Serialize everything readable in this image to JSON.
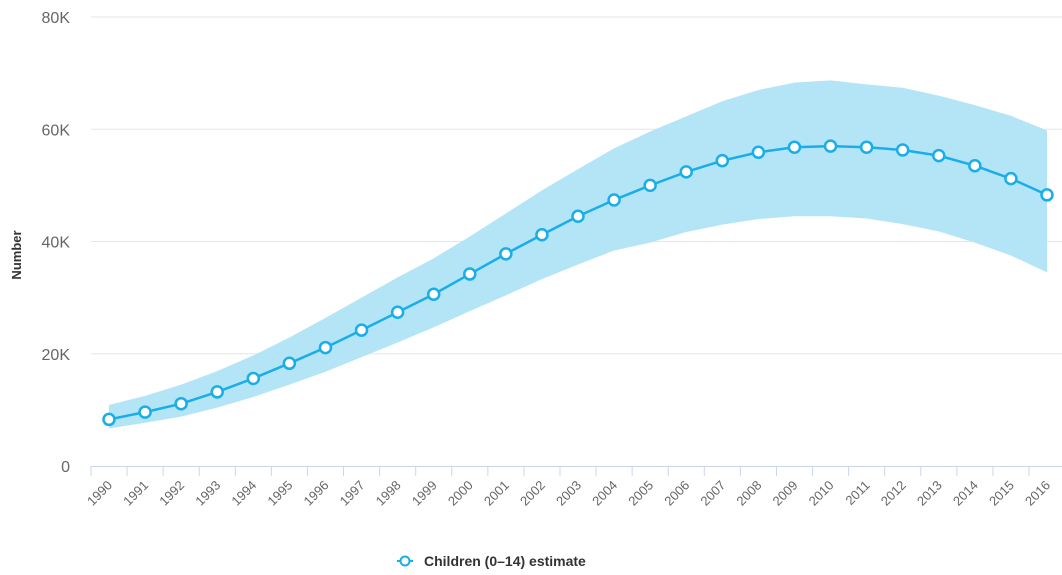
{
  "colors": {
    "series": "#1aaee8",
    "band": "#b3e5f7",
    "grid": "#e6e6e6",
    "axis": "#ccd6eb",
    "marker_fill": "#ffffff"
  },
  "chart_data": {
    "type": "line",
    "ylabel": "Number",
    "ylim": [
      0,
      80000
    ],
    "yticks": [
      {
        "value": 0,
        "label": "0"
      },
      {
        "value": 20000,
        "label": "20K"
      },
      {
        "value": 40000,
        "label": "40K"
      },
      {
        "value": 60000,
        "label": "60K"
      },
      {
        "value": 80000,
        "label": "80K"
      }
    ],
    "grid": true,
    "legend_position": "bottom-center",
    "categories": [
      "1990",
      "1991",
      "1992",
      "1993",
      "1994",
      "1995",
      "1996",
      "1997",
      "1998",
      "1999",
      "2000",
      "2001",
      "2002",
      "2003",
      "2004",
      "2005",
      "2006",
      "2007",
      "2008",
      "2009",
      "2010",
      "2011",
      "2012",
      "2013",
      "2014",
      "2015",
      "2016"
    ],
    "series": [
      {
        "name": "Children (0–14) estimate",
        "values": [
          8300,
          9600,
          11100,
          13200,
          15600,
          18300,
          21100,
          24200,
          27400,
          30600,
          34200,
          37800,
          41200,
          44500,
          47400,
          50000,
          52400,
          54400,
          55900,
          56800,
          57000,
          56800,
          56300,
          55300,
          53500,
          51200,
          48300
        ],
        "lower": [
          6700,
          7700,
          8800,
          10400,
          12300,
          14500,
          16800,
          19400,
          22000,
          24700,
          27600,
          30400,
          33300,
          35900,
          38400,
          39800,
          41700,
          43000,
          44000,
          44500,
          44500,
          44100,
          43100,
          41800,
          39800,
          37500,
          34500
        ],
        "upper": [
          10900,
          12500,
          14500,
          16900,
          19700,
          22900,
          26400,
          30000,
          33600,
          37000,
          40900,
          45000,
          49100,
          52900,
          56600,
          59600,
          62300,
          65000,
          67000,
          68300,
          68700,
          68000,
          67400,
          66000,
          64300,
          62400,
          59800
        ]
      }
    ]
  }
}
